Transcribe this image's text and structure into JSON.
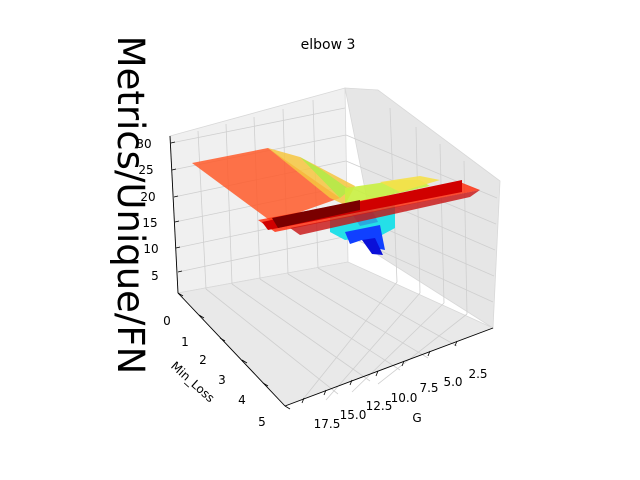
{
  "chart_data": {
    "type": "surface3d",
    "title": "elbow 3",
    "zlabel": "Metrics/Unique/FN",
    "ylabel": "Min_Loss",
    "xlabel": "G",
    "z_ticks": [
      "5",
      "10",
      "15",
      "20",
      "25",
      "30"
    ],
    "y_ticks": [
      "0",
      "1",
      "2",
      "3",
      "4",
      "5"
    ],
    "x_ticks": [
      "2.5",
      "5.0",
      "7.5",
      "10.0",
      "12.5",
      "15.0",
      "17.5"
    ],
    "zlim": [
      0,
      30
    ],
    "ylim": [
      0,
      5
    ],
    "xlim": [
      0,
      19
    ],
    "grid": true,
    "colormap": "jet",
    "surface_notes": "estimated surface: high plateau (~25) near Min_Loss 0 at large G, a red ridge (~20) along Min_Loss ~1.5, and a low blue trough (~0-10) near Min_Loss 3 at G ~7-10"
  }
}
